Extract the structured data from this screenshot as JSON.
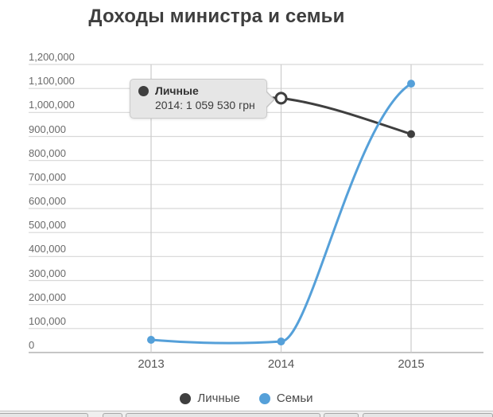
{
  "chart_data": {
    "type": "line",
    "title": "Доходы министра и семьи",
    "x": [
      "2013",
      "2014",
      "2015"
    ],
    "series": [
      {
        "name": "Личные",
        "color": "#3f3f3f",
        "values": [
          1065000,
          1059530,
          910000
        ]
      },
      {
        "name": "Семьи",
        "color": "#55a0d9",
        "values": [
          53000,
          46000,
          1120000
        ]
      }
    ],
    "ylim": [
      0,
      1200000
    ],
    "ytick_step": 100000,
    "xlabel": "",
    "ylabel": "",
    "grid": true,
    "legend_position": "bottom",
    "hover": {
      "series": 0,
      "index": 1,
      "formatted": "2014: 1 059 530 грн"
    }
  },
  "tooltip": {
    "series": "Личные",
    "value_line": "2014: 1 059 530 грн"
  }
}
